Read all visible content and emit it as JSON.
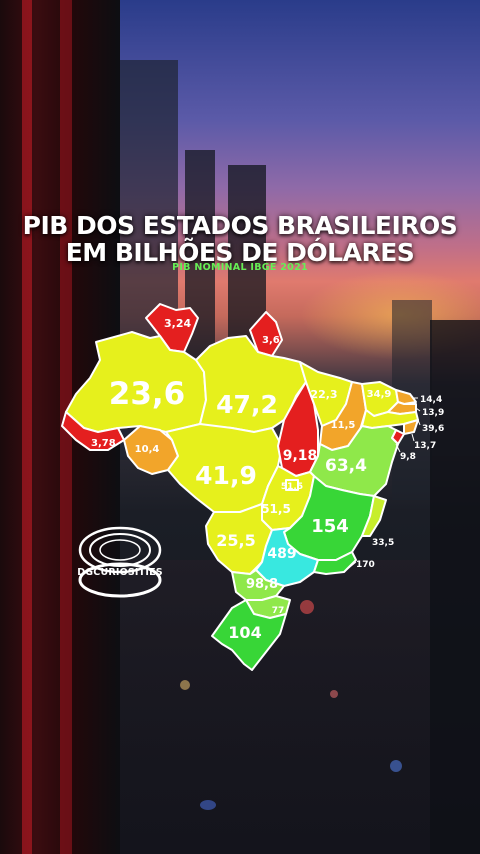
{
  "title_line1": "PIB DOS ESTADOS BRASILEIROS",
  "title_line2": "EM BILHÕES DE DÓLARES",
  "subtitle": "PIB NOMINAL IBGE 2021",
  "logo_text": "DGCURIOSITIES",
  "colors": {
    "red": "#e41f1f",
    "orange": "#f2a52a",
    "yellow": "#e6f01c",
    "yellow_green": "#c7ee2c",
    "light_green": "#8fe84a",
    "green": "#38d637",
    "cyan": "#38e8e0",
    "border": "#ffffff"
  },
  "states": [
    {
      "id": "amapa",
      "value": "3,6",
      "color": "red"
    },
    {
      "id": "roraima",
      "value": "3,24",
      "color": "red"
    },
    {
      "id": "amazonas",
      "value": "23,6",
      "color": "yellow"
    },
    {
      "id": "para",
      "value": "47,2",
      "color": "yellow"
    },
    {
      "id": "acre",
      "value": "3,78",
      "color": "red"
    },
    {
      "id": "rondonia",
      "value": "10,4",
      "color": "orange"
    },
    {
      "id": "mato-grosso",
      "value": "41,9",
      "color": "yellow"
    },
    {
      "id": "tocantins",
      "value": "9,18",
      "color": "red"
    },
    {
      "id": "maranhao",
      "value": "22,3",
      "color": "yellow"
    },
    {
      "id": "piaui",
      "value": "11,5",
      "color": "orange"
    },
    {
      "id": "ceara",
      "value": "34,9",
      "color": "yellow"
    },
    {
      "id": "rio-grande-do-norte",
      "value": "14,4",
      "color": "orange"
    },
    {
      "id": "paraiba",
      "value": "13,9",
      "color": "orange"
    },
    {
      "id": "pernambuco",
      "value": "39,6",
      "color": "yellow"
    },
    {
      "id": "alagoas",
      "value": "13,7",
      "color": "orange"
    },
    {
      "id": "sergipe",
      "value": "9,8",
      "color": "red"
    },
    {
      "id": "bahia",
      "value": "63,4",
      "color": "light_green"
    },
    {
      "id": "distrito-federal",
      "value": "51,5",
      "color": "yellow"
    },
    {
      "id": "goias",
      "value": "51,5",
      "color": "yellow"
    },
    {
      "id": "minas-gerais",
      "value": "154",
      "color": "green"
    },
    {
      "id": "espirito-santo",
      "value": "33,5",
      "color": "yellow_green"
    },
    {
      "id": "mato-grosso-do-sul",
      "value": "25,5",
      "color": "yellow"
    },
    {
      "id": "sao-paulo",
      "value": "489",
      "color": "cyan"
    },
    {
      "id": "rio-de-janeiro",
      "value": "170",
      "color": "green"
    },
    {
      "id": "parana",
      "value": "98,8",
      "color": "light_green"
    },
    {
      "id": "santa-catarina",
      "value": "77",
      "color": "light_green"
    },
    {
      "id": "rio-grande-do-sul",
      "value": "104",
      "color": "green"
    }
  ]
}
